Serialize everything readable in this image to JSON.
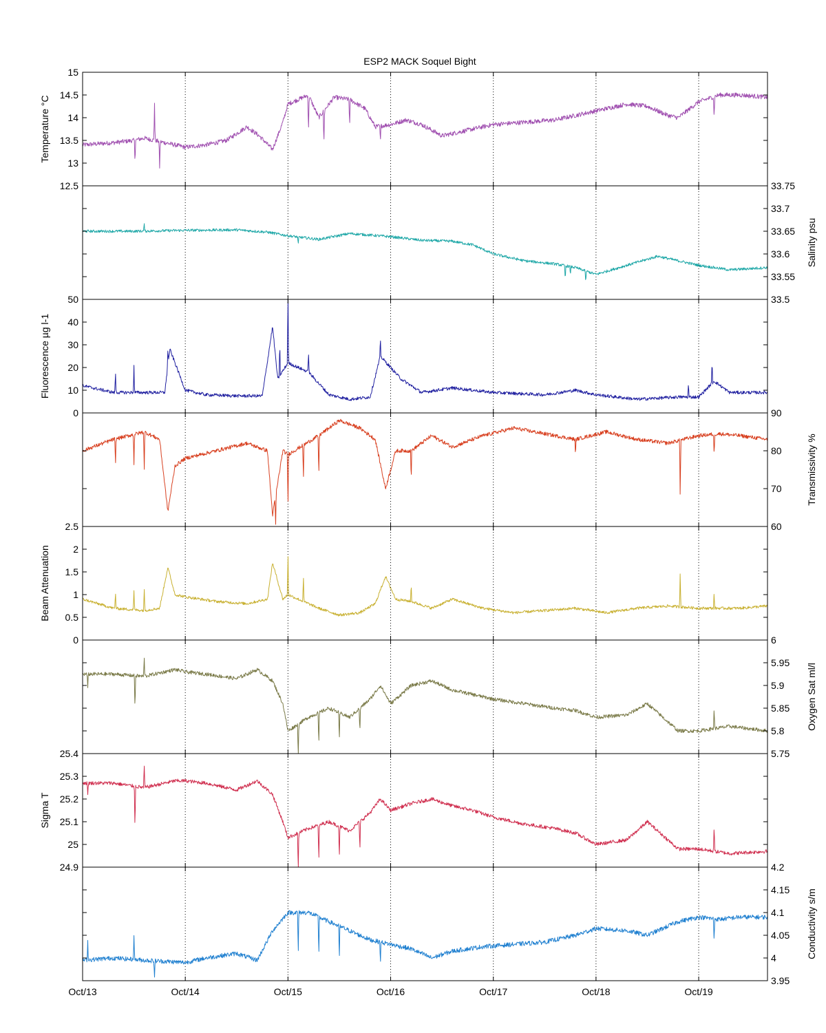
{
  "chart_data": {
    "type": "line",
    "title": "ESP2 MACK  Soquel Bight",
    "x_ticks": [
      "Oct/13",
      "Oct/14",
      "Oct/15",
      "Oct/16",
      "Oct/17",
      "Oct/18",
      "Oct/19"
    ],
    "xlim": [
      0,
      6.67
    ],
    "xgrid": "dotted",
    "panels": [
      {
        "ylabel": "Temperature °C",
        "axis_side": "left",
        "ylim": [
          12.5,
          15
        ],
        "ticks": [
          "12.5",
          "13",
          "13.5",
          "14",
          "14.5",
          "15"
        ],
        "color": "#a050b0",
        "key_x": [
          0,
          0.3,
          0.5,
          0.6,
          0.8,
          1.0,
          1.2,
          1.4,
          1.6,
          1.72,
          1.85,
          1.95,
          2.0,
          2.2,
          2.3,
          2.45,
          2.6,
          2.75,
          2.85,
          3.0,
          3.15,
          3.3,
          3.5,
          3.7,
          3.9,
          4.0,
          4.3,
          4.6,
          4.8,
          5.0,
          5.3,
          5.5,
          5.7,
          5.8,
          6.0,
          6.2,
          6.4,
          6.67
        ],
        "key_y": [
          13.4,
          13.45,
          13.5,
          13.55,
          13.45,
          13.35,
          13.4,
          13.5,
          13.8,
          13.6,
          13.3,
          13.9,
          14.3,
          14.5,
          14.0,
          14.45,
          14.4,
          14.2,
          13.8,
          13.85,
          13.95,
          13.85,
          13.6,
          13.7,
          13.8,
          13.85,
          13.9,
          13.95,
          14.05,
          14.15,
          14.3,
          14.25,
          14.05,
          14.0,
          14.35,
          14.5,
          14.5,
          14.45
        ],
        "noise": 0.05,
        "spikes": [
          [
            0.51,
            -0.5
          ],
          [
            0.7,
            0.9
          ],
          [
            0.75,
            -0.6
          ],
          [
            2.2,
            -0.9
          ],
          [
            2.35,
            -0.8
          ],
          [
            2.6,
            -0.6
          ],
          [
            2.9,
            -0.4
          ],
          [
            6.15,
            -0.5
          ]
        ]
      },
      {
        "ylabel": "Salinity psu",
        "axis_side": "right",
        "ylim": [
          33.5,
          33.75
        ],
        "ticks": [
          "33.5",
          "33.55",
          "33.6",
          "33.65",
          "33.7",
          "33.75"
        ],
        "color": "#20a8a8",
        "key_x": [
          0,
          0.5,
          1.0,
          1.5,
          1.8,
          2.0,
          2.3,
          2.6,
          3.0,
          3.3,
          3.6,
          3.8,
          4.0,
          4.3,
          4.6,
          4.8,
          5.0,
          5.3,
          5.6,
          5.8,
          6.0,
          6.3,
          6.67
        ],
        "key_y": [
          33.65,
          33.65,
          33.652,
          33.653,
          33.648,
          33.64,
          33.632,
          33.645,
          33.638,
          33.63,
          33.628,
          33.62,
          33.6,
          33.585,
          33.578,
          33.57,
          33.555,
          33.575,
          33.595,
          33.585,
          33.575,
          33.565,
          33.57
        ],
        "noise": 0.003,
        "spikes": [
          [
            0.6,
            0.015
          ],
          [
            2.1,
            -0.02
          ],
          [
            4.7,
            -0.035
          ],
          [
            4.75,
            -0.02
          ],
          [
            4.9,
            -0.03
          ]
        ]
      },
      {
        "ylabel": "Fluorescence µg l-1",
        "axis_side": "left",
        "ylim": [
          0,
          50
        ],
        "ticks": [
          "0",
          "10",
          "20",
          "30",
          "40",
          "50"
        ],
        "color": "#2020a0",
        "key_x": [
          0,
          0.3,
          0.8,
          0.85,
          1.0,
          1.2,
          1.5,
          1.75,
          1.85,
          1.9,
          2.0,
          2.2,
          2.4,
          2.6,
          2.8,
          2.9,
          3.0,
          3.1,
          3.3,
          3.6,
          3.8,
          4.0,
          4.5,
          4.8,
          5.0,
          5.4,
          5.8,
          6.0,
          6.15,
          6.3,
          6.67
        ],
        "key_y": [
          12,
          9,
          9,
          28,
          10,
          8,
          7.5,
          7.5,
          38,
          15,
          22,
          18,
          8,
          6,
          7,
          25,
          20,
          15,
          9,
          11,
          10,
          9,
          8,
          10,
          8,
          6,
          7,
          7,
          14,
          9,
          9
        ],
        "noise": 0.7,
        "spikes": [
          [
            0.32,
            10
          ],
          [
            0.5,
            12
          ],
          [
            0.83,
            8
          ],
          [
            1.92,
            15
          ],
          [
            2.0,
            35
          ],
          [
            2.2,
            10
          ],
          [
            2.9,
            8
          ],
          [
            5.9,
            6
          ],
          [
            6.13,
            10
          ]
        ]
      },
      {
        "ylabel": "Transmissivity %",
        "axis_side": "right",
        "ylim": [
          60,
          90
        ],
        "ticks": [
          "60",
          "70",
          "80",
          "90"
        ],
        "color": "#d84020",
        "key_x": [
          0,
          0.3,
          0.6,
          0.75,
          0.83,
          0.9,
          1.0,
          1.3,
          1.6,
          1.8,
          1.85,
          1.95,
          2.0,
          2.3,
          2.5,
          2.7,
          2.85,
          2.95,
          3.05,
          3.2,
          3.4,
          3.6,
          3.9,
          4.2,
          4.5,
          4.8,
          5.1,
          5.4,
          5.7,
          6.0,
          6.2,
          6.4,
          6.67
        ],
        "key_y": [
          80,
          83,
          85,
          83,
          64,
          76,
          78,
          80,
          82,
          80,
          63,
          80,
          79,
          84,
          88,
          86,
          83,
          70,
          80,
          80,
          84,
          81,
          84,
          86,
          84.5,
          83,
          85,
          83,
          82,
          84,
          84.5,
          84,
          83
        ],
        "noise": 0.5,
        "spikes": [
          [
            0.32,
            -8
          ],
          [
            0.5,
            -8
          ],
          [
            0.6,
            -10
          ],
          [
            1.88,
            -8
          ],
          [
            2.0,
            -15
          ],
          [
            2.15,
            -10
          ],
          [
            2.3,
            -12
          ],
          [
            3.2,
            -8
          ],
          [
            4.8,
            -5
          ],
          [
            5.82,
            -15
          ],
          [
            6.15,
            -6
          ]
        ]
      },
      {
        "ylabel": "Beam Attenuation",
        "axis_side": "left",
        "ylim": [
          0,
          2.5
        ],
        "ticks": [
          "0",
          "0.5",
          "1",
          "1.5",
          "2",
          "2.5"
        ],
        "color": "#c8b030",
        "key_x": [
          0,
          0.3,
          0.6,
          0.75,
          0.83,
          0.9,
          1.0,
          1.3,
          1.6,
          1.8,
          1.85,
          1.95,
          2.0,
          2.3,
          2.5,
          2.7,
          2.85,
          2.95,
          3.05,
          3.2,
          3.4,
          3.6,
          3.9,
          4.2,
          4.5,
          4.8,
          5.1,
          5.4,
          5.7,
          6.0,
          6.2,
          6.4,
          6.67
        ],
        "key_y": [
          0.9,
          0.7,
          0.65,
          0.7,
          1.6,
          1.0,
          0.95,
          0.85,
          0.8,
          0.9,
          1.7,
          0.9,
          1.0,
          0.7,
          0.55,
          0.6,
          0.8,
          1.4,
          0.9,
          0.85,
          0.7,
          0.9,
          0.7,
          0.6,
          0.65,
          0.7,
          0.6,
          0.7,
          0.75,
          0.7,
          0.7,
          0.7,
          0.75
        ],
        "noise": 0.03,
        "spikes": [
          [
            0.32,
            0.4
          ],
          [
            0.5,
            0.45
          ],
          [
            0.6,
            0.5
          ],
          [
            2.0,
            1.0
          ],
          [
            2.15,
            0.6
          ],
          [
            3.2,
            0.4
          ],
          [
            5.82,
            0.8
          ],
          [
            6.15,
            0.35
          ]
        ]
      },
      {
        "ylabel": "Oxygen Sat ml/l",
        "axis_side": "right",
        "ylim": [
          5.75,
          6
        ],
        "ticks": [
          "5.75",
          "5.8",
          "5.85",
          "5.9",
          "5.95",
          "6"
        ],
        "color": "#7a7a48",
        "key_x": [
          0,
          0.3,
          0.6,
          0.9,
          1.0,
          1.2,
          1.5,
          1.7,
          1.85,
          1.95,
          2.0,
          2.2,
          2.4,
          2.6,
          2.8,
          2.9,
          3.0,
          3.2,
          3.4,
          3.6,
          3.8,
          4.0,
          4.3,
          4.6,
          4.8,
          5.0,
          5.3,
          5.5,
          5.7,
          5.8,
          6.0,
          6.3,
          6.67
        ],
        "key_y": [
          5.925,
          5.925,
          5.92,
          5.935,
          5.93,
          5.925,
          5.915,
          5.935,
          5.91,
          5.86,
          5.8,
          5.83,
          5.85,
          5.83,
          5.87,
          5.9,
          5.86,
          5.9,
          5.91,
          5.89,
          5.88,
          5.87,
          5.86,
          5.85,
          5.845,
          5.83,
          5.835,
          5.86,
          5.82,
          5.8,
          5.8,
          5.81,
          5.8
        ],
        "noise": 0.004,
        "spikes": [
          [
            0.05,
            -0.03
          ],
          [
            0.51,
            -0.08
          ],
          [
            0.6,
            0.04
          ],
          [
            2.1,
            -0.09
          ],
          [
            2.3,
            -0.08
          ],
          [
            2.5,
            -0.07
          ],
          [
            2.7,
            -0.06
          ],
          [
            6.15,
            0.05
          ]
        ]
      },
      {
        "ylabel": "Sigma T",
        "axis_side": "left",
        "ylim": [
          24.9,
          25.4
        ],
        "ticks": [
          "24.9",
          "25",
          "25.1",
          "25.2",
          "25.3",
          "25.4"
        ],
        "color": "#d03050",
        "key_x": [
          0,
          0.3,
          0.6,
          0.9,
          1.0,
          1.2,
          1.5,
          1.7,
          1.85,
          1.95,
          2.0,
          2.2,
          2.4,
          2.6,
          2.8,
          2.9,
          3.0,
          3.2,
          3.4,
          3.6,
          3.8,
          4.0,
          4.3,
          4.6,
          4.8,
          5.0,
          5.3,
          5.5,
          5.7,
          5.8,
          6.0,
          6.3,
          6.67
        ],
        "key_y": [
          25.27,
          25.27,
          25.25,
          25.28,
          25.28,
          25.27,
          25.24,
          25.28,
          25.22,
          25.1,
          25.03,
          25.07,
          25.1,
          25.06,
          25.14,
          25.2,
          25.15,
          25.18,
          25.2,
          25.17,
          25.15,
          25.12,
          25.09,
          25.07,
          25.05,
          25.0,
          25.02,
          25.1,
          25.02,
          24.98,
          24.98,
          24.96,
          24.97
        ],
        "noise": 0.008,
        "spikes": [
          [
            0.05,
            -0.05
          ],
          [
            0.51,
            -0.2
          ],
          [
            0.6,
            0.1
          ],
          [
            2.1,
            -0.2
          ],
          [
            2.3,
            -0.18
          ],
          [
            2.5,
            -0.15
          ],
          [
            2.7,
            -0.15
          ],
          [
            6.15,
            0.12
          ]
        ]
      },
      {
        "ylabel": "Conductivity s/m",
        "axis_side": "right",
        "ylim": [
          3.95,
          4.2
        ],
        "ticks": [
          "3.95",
          "4",
          "4.05",
          "4.1",
          "4.15",
          "4.2"
        ],
        "color": "#2080d0",
        "key_x": [
          0,
          0.3,
          0.6,
          1.0,
          1.2,
          1.5,
          1.7,
          1.85,
          2.0,
          2.2,
          2.4,
          2.6,
          2.8,
          3.0,
          3.2,
          3.4,
          3.6,
          3.9,
          4.2,
          4.5,
          4.8,
          5.0,
          5.3,
          5.5,
          5.7,
          5.8,
          6.0,
          6.2,
          6.4,
          6.67
        ],
        "key_y": [
          3.995,
          4.0,
          3.995,
          3.99,
          4.0,
          4.01,
          3.995,
          4.06,
          4.1,
          4.1,
          4.08,
          4.06,
          4.04,
          4.03,
          4.02,
          4.0,
          4.015,
          4.025,
          4.03,
          4.035,
          4.05,
          4.065,
          4.06,
          4.05,
          4.07,
          4.08,
          4.09,
          4.085,
          4.09,
          4.09
        ],
        "noise": 0.005,
        "spikes": [
          [
            0.5,
            0.06
          ],
          [
            0.7,
            -0.04
          ],
          [
            0.05,
            0.04
          ],
          [
            2.1,
            -0.1
          ],
          [
            2.3,
            -0.09
          ],
          [
            2.5,
            -0.08
          ],
          [
            2.9,
            -0.05
          ],
          [
            6.15,
            -0.05
          ]
        ]
      }
    ]
  }
}
